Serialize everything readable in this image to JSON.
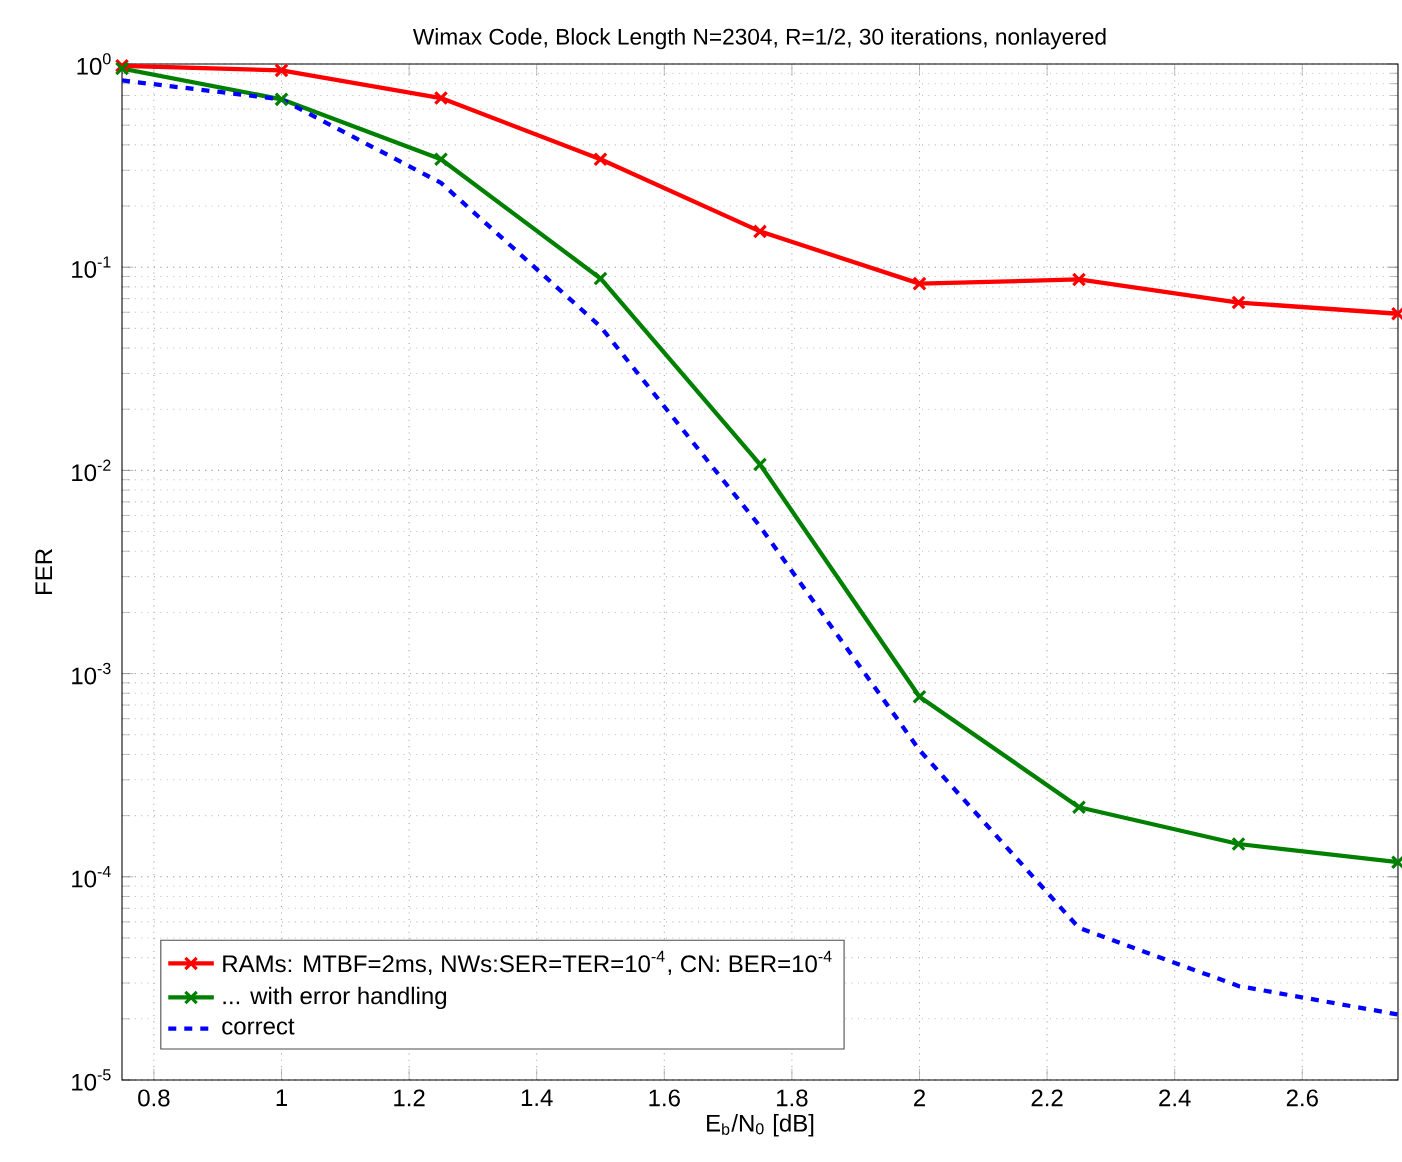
{
  "chart_data": {
    "type": "line",
    "title": "Wimax Code, Block Length N=2304, R=1/2, 30 iterations, nonlayered",
    "xlabel": "E$_{b}$/N$_{0}$ [dB]",
    "ylabel": "FER",
    "x": [
      0.75,
      1.0,
      1.25,
      1.5,
      1.75,
      2.0,
      2.25,
      2.5,
      2.75
    ],
    "series": [
      {
        "name": "RAMs: MTBF=2ms, NWs:SER=TER=10$^{-4}$, CN: BER=10$^{-4}$",
        "color": "#ff0000",
        "marker": "cross",
        "line_style": "solid",
        "values": [
          0.98,
          0.93,
          0.68,
          0.34,
          0.15,
          0.083,
          0.087,
          0.067,
          0.059
        ]
      },
      {
        "name": "... with error handling",
        "color": "#008000",
        "marker": "cross",
        "line_style": "solid",
        "values": [
          0.95,
          0.67,
          0.34,
          0.088,
          0.0107,
          0.00077,
          0.00022,
          0.000145,
          0.000118
        ]
      },
      {
        "name": "correct",
        "color": "#0000ff",
        "marker": "none",
        "line_style": "dashed",
        "values": [
          0.83,
          0.67,
          0.26,
          0.051,
          0.0053,
          0.00042,
          5.6e-05,
          2.9e-05,
          2.1e-05
        ]
      }
    ],
    "log": "y",
    "xlim": [
      0.75,
      2.75
    ],
    "ylim": [
      1e-05,
      1
    ],
    "xticks": [
      0.8,
      1,
      1.2,
      1.4,
      1.6,
      1.8,
      2,
      2.2,
      2.4,
      2.6
    ],
    "yticks": [
      {
        "value": 1e-05,
        "label": "10$^{-5}$"
      },
      {
        "value": 0.0001,
        "label": "10$^{-4}$"
      },
      {
        "value": 0.001,
        "label": "10$^{-3}$"
      },
      {
        "value": 0.01,
        "label": "10$^{-2}$"
      },
      {
        "value": 0.1,
        "label": "10$^{-1}$"
      },
      {
        "value": 1,
        "label": "10$^{0}$"
      }
    ],
    "grid": true,
    "legend": "bottom left"
  }
}
